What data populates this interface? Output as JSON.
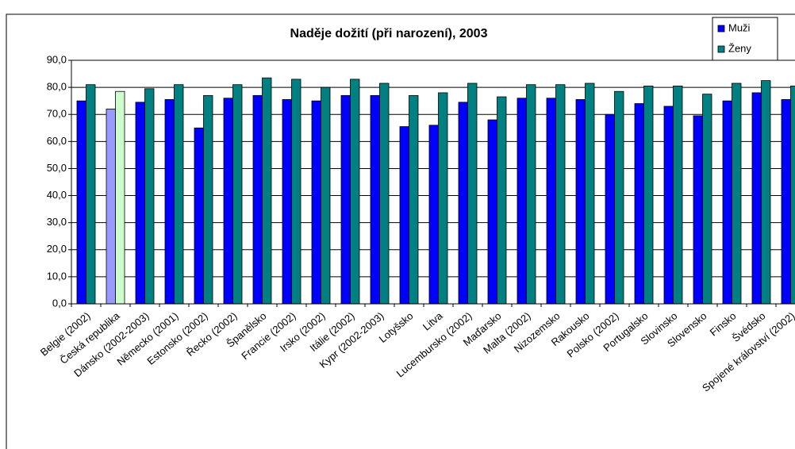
{
  "chart_data": {
    "type": "bar",
    "title": "Naděje dožití (při narození), 2003",
    "categories": [
      "Belgie (2002)",
      "Česká republika",
      "Dánsko (2002-2003)",
      "Německo (2001)",
      "Estonsko (2002)",
      "Řecko (2002)",
      "Španělsko",
      "Francie (2002)",
      "Irsko (2002)",
      "Itálie (2002)",
      "Kypr (2002-2003)",
      "Lotyšsko",
      "Litva",
      "Lucembursko (2002)",
      "Maďarsko",
      "Malta (2002)",
      "Nizozemsko",
      "Rakousko",
      "Polsko (2002)",
      "Portugalsko",
      "Slovinsko",
      "Slovensko",
      "Finsko",
      "Švédsko",
      "Spojené království (2002)"
    ],
    "series": [
      {
        "name": "Muži",
        "color": "#0000ff",
        "values": [
          75,
          72,
          74.5,
          75.5,
          65,
          76,
          77,
          75.5,
          75,
          77,
          77,
          65.5,
          66,
          74.5,
          68,
          76,
          76,
          75.5,
          70,
          74,
          73,
          69.5,
          75,
          78,
          75.5
        ]
      },
      {
        "name": "Ženy",
        "color": "#008080",
        "values": [
          81,
          78.5,
          79.5,
          81,
          77,
          81,
          83.5,
          83,
          80,
          83,
          81.5,
          77,
          78,
          81.5,
          76.5,
          81,
          81,
          81.5,
          78.5,
          80.5,
          80.5,
          77.5,
          81.5,
          82.5,
          80.5
        ]
      }
    ],
    "highlight": {
      "category": 1,
      "colors": [
        "#9999ff",
        "#ccffcc"
      ]
    },
    "ylim": [
      0,
      90
    ],
    "yticks": [
      {
        "value": 0,
        "label": "0,0"
      },
      {
        "value": 10,
        "label": "10,0"
      },
      {
        "value": 20,
        "label": "20,0"
      },
      {
        "value": 30,
        "label": "30,0"
      },
      {
        "value": 40,
        "label": "40,0"
      },
      {
        "value": 50,
        "label": "50,0"
      },
      {
        "value": 60,
        "label": "60,0"
      },
      {
        "value": 70,
        "label": "70,0"
      },
      {
        "value": 80,
        "label": "80,0"
      },
      {
        "value": 90,
        "label": "90,0"
      }
    ],
    "grid": true,
    "legend": "top-right"
  }
}
